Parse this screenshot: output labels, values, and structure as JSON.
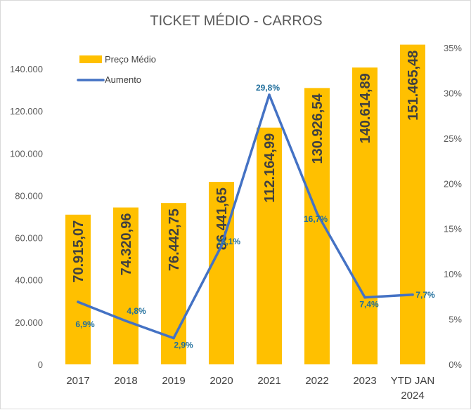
{
  "chart_data": {
    "type": "bar",
    "title": "TICKET MÉDIO - CARROS",
    "categories": [
      "2017",
      "2018",
      "2019",
      "2020",
      "2021",
      "2022",
      "2023",
      "YTD JAN 2024"
    ],
    "category_lines": [
      [
        "2017"
      ],
      [
        "2018"
      ],
      [
        "2019"
      ],
      [
        "2020"
      ],
      [
        "2021"
      ],
      [
        "2022"
      ],
      [
        "2023"
      ],
      [
        "YTD JAN",
        "2024"
      ]
    ],
    "series": [
      {
        "name": "Preço Médio",
        "type": "bar",
        "axis": "left",
        "color": "#FFC000",
        "values": [
          70915.07,
          74320.96,
          76442.75,
          86441.65,
          112164.99,
          130926.54,
          140614.89,
          151465.48
        ],
        "labels": [
          "70.915,07",
          "74.320,96",
          "76.442,75",
          "86.441,65",
          "112.164,99",
          "130.926,54",
          "140.614,89",
          "151.465,48"
        ]
      },
      {
        "name": "Aumento",
        "type": "line",
        "axis": "right",
        "color": "#4472C4",
        "values": [
          6.9,
          4.8,
          2.9,
          13.1,
          29.8,
          16.7,
          7.4,
          7.7
        ],
        "labels": [
          "6,9%",
          "4,8%",
          "2,9%",
          "13,1%",
          "29,8%",
          "16,7%",
          "7,4%",
          "7,7%"
        ]
      }
    ],
    "y_left": {
      "ylim": [
        0,
        150000
      ],
      "ticks": [
        0,
        20000,
        40000,
        60000,
        80000,
        100000,
        120000,
        140000
      ],
      "tick_labels": [
        "0",
        "20.000",
        "40.000",
        "60.000",
        "80.000",
        "100.000",
        "120.000",
        "140.000"
      ]
    },
    "y_right": {
      "ylim": [
        0,
        35
      ],
      "ticks": [
        0,
        5,
        10,
        15,
        20,
        25,
        30,
        35
      ],
      "tick_labels": [
        "0%",
        "5%",
        "10%",
        "15%",
        "20%",
        "25%",
        "30%",
        "35%"
      ]
    },
    "grid": false,
    "legend": "top-left"
  }
}
